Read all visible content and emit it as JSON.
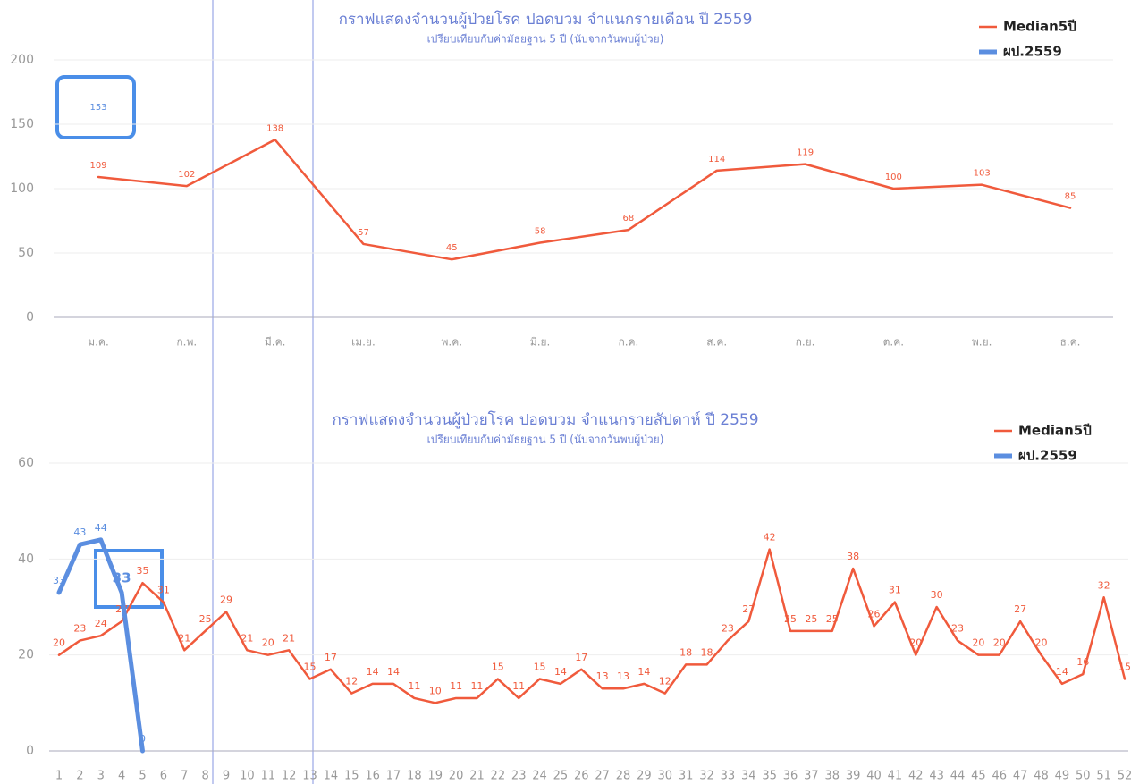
{
  "chart_data": [
    {
      "type": "line",
      "title": "กราฟแสดงจำนวนผู้ป่วยโรค ปอดบวม จำแนกรายเดือน ปี 2559",
      "subtitle": "เปรียบเทียบกับค่ามัธยฐาน 5 ปี (นับจากวันพบผู้ป่วย)",
      "categories": [
        "ม.ค.",
        "ก.พ.",
        "มี.ค.",
        "เม.ย.",
        "พ.ค.",
        "มิ.ย.",
        "ก.ค.",
        "ส.ค.",
        "ก.ย.",
        "ต.ค.",
        "พ.ย.",
        "ธ.ค."
      ],
      "series": [
        {
          "name": "Median5ปี",
          "color": "#f05a3c",
          "values": [
            109,
            102,
            138,
            57,
            45,
            58,
            68,
            114,
            119,
            100,
            103,
            85
          ]
        },
        {
          "name": "ผป.2559",
          "color": "#5b8ee0",
          "values": [
            153,
            null,
            null,
            null,
            null,
            null,
            null,
            null,
            null,
            null,
            null,
            null
          ]
        }
      ],
      "ylim": [
        0,
        200
      ],
      "yticks": [
        0,
        50,
        100,
        150,
        200
      ],
      "grid": true,
      "legend": "top-right"
    },
    {
      "type": "line",
      "title": "กราฟแสดงจำนวนผู้ป่วยโรค ปอดบวม จำแนกรายสัปดาห์ ปี 2559",
      "subtitle": "เปรียบเทียบกับค่ามัธยฐาน 5 ปี (นับจากวันพบผู้ป่วย)",
      "categories": [
        "1",
        "2",
        "3",
        "4",
        "5",
        "6",
        "7",
        "8",
        "9",
        "10",
        "11",
        "12",
        "13",
        "14",
        "15",
        "16",
        "17",
        "18",
        "19",
        "20",
        "21",
        "22",
        "23",
        "24",
        "25",
        "26",
        "27",
        "28",
        "29",
        "30",
        "31",
        "32",
        "33",
        "34",
        "35",
        "36",
        "37",
        "38",
        "39",
        "40",
        "41",
        "42",
        "43",
        "44",
        "45",
        "46",
        "47",
        "48",
        "49",
        "50",
        "51",
        "52"
      ],
      "series": [
        {
          "name": "Median5ปี",
          "color": "#f05a3c",
          "values": [
            20,
            23,
            24,
            27,
            35,
            31,
            21,
            25,
            29,
            21,
            20,
            21,
            15,
            17,
            12,
            14,
            14,
            11,
            10,
            11,
            11,
            15,
            11,
            15,
            14,
            17,
            13,
            13,
            14,
            12,
            18,
            18,
            23,
            27,
            42,
            25,
            25,
            25,
            38,
            26,
            31,
            20,
            30,
            23,
            20,
            20,
            27,
            20,
            14,
            16,
            32,
            15
          ]
        },
        {
          "name": "ผป.2559",
          "color": "#5b8ee0",
          "values": [
            33,
            43,
            44,
            33,
            0,
            null,
            null,
            null,
            null,
            null,
            null,
            null,
            null,
            null,
            null,
            null,
            null,
            null,
            null,
            null,
            null,
            null,
            null,
            null,
            null,
            null,
            null,
            null,
            null,
            null,
            null,
            null,
            null,
            null,
            null,
            null,
            null,
            null,
            null,
            null,
            null,
            null,
            null,
            null,
            null,
            null,
            null,
            null,
            null,
            null,
            null,
            null
          ]
        }
      ],
      "ylim": [
        0,
        60
      ],
      "yticks": [
        0,
        20,
        40,
        60
      ],
      "grid": true,
      "legend": "top-right"
    }
  ]
}
